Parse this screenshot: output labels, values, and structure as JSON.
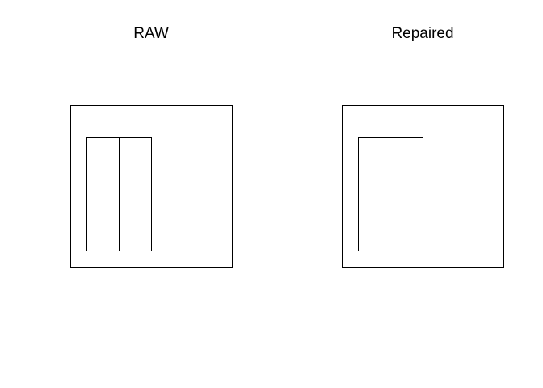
{
  "panels": [
    {
      "title": "RAW"
    },
    {
      "title": "Repaired"
    }
  ],
  "colors": {
    "background": "#ffffff",
    "stroke": "#000000"
  }
}
